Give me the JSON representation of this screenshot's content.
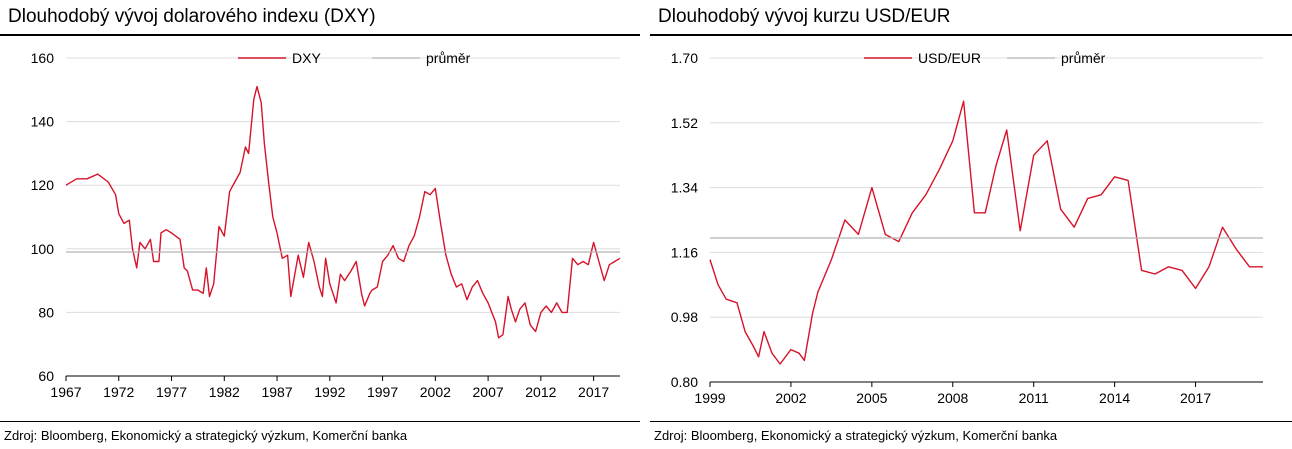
{
  "colors": {
    "series": "#d7132a",
    "average": "#b3b3b3",
    "grid": "#dddddd",
    "axis": "#000000"
  },
  "left": {
    "title": "Dlouhodobý vývoj dolarového indexu (DXY)",
    "source": "Zdroj: Bloomberg, Ekonomický a strategický výzkum, Komerční banka",
    "chart_data": {
      "type": "line",
      "title": "Dlouhodobý vývoj dolarového indexu (DXY)",
      "legend_position": "top-center",
      "grid": true,
      "x_range": [
        1967,
        2019.5
      ],
      "ylim": [
        60,
        160
      ],
      "x_ticks": [
        1967,
        1972,
        1977,
        1982,
        1987,
        1992,
        1997,
        2002,
        2007,
        2012,
        2017
      ],
      "y_ticks": [
        60,
        80,
        100,
        120,
        140,
        160
      ],
      "series": [
        {
          "name": "DXY",
          "role": "series",
          "points": [
            [
              1967,
              120
            ],
            [
              1968,
              122
            ],
            [
              1969,
              122
            ],
            [
              1970,
              123.5
            ],
            [
              1971,
              121
            ],
            [
              1971.7,
              117
            ],
            [
              1972,
              111
            ],
            [
              1972.5,
              108
            ],
            [
              1973,
              109
            ],
            [
              1973.3,
              100
            ],
            [
              1973.7,
              94
            ],
            [
              1974,
              102
            ],
            [
              1974.5,
              100
            ],
            [
              1975,
              103
            ],
            [
              1975.3,
              96
            ],
            [
              1975.8,
              96
            ],
            [
              1976,
              105
            ],
            [
              1976.5,
              106
            ],
            [
              1977,
              105
            ],
            [
              1977.8,
              103
            ],
            [
              1978.2,
              94
            ],
            [
              1978.5,
              93
            ],
            [
              1979,
              87
            ],
            [
              1979.5,
              87
            ],
            [
              1980,
              86
            ],
            [
              1980.3,
              94
            ],
            [
              1980.6,
              85
            ],
            [
              1981,
              89
            ],
            [
              1981.5,
              107
            ],
            [
              1982,
              104
            ],
            [
              1982.5,
              118
            ],
            [
              1983,
              121
            ],
            [
              1983.5,
              124
            ],
            [
              1984,
              132
            ],
            [
              1984.3,
              130
            ],
            [
              1984.8,
              147
            ],
            [
              1985.1,
              151
            ],
            [
              1985.5,
              146
            ],
            [
              1985.8,
              133
            ],
            [
              1986.2,
              121
            ],
            [
              1986.6,
              110
            ],
            [
              1987,
              105
            ],
            [
              1987.5,
              97
            ],
            [
              1988,
              98
            ],
            [
              1988.3,
              85
            ],
            [
              1989,
              98
            ],
            [
              1989.5,
              91
            ],
            [
              1990,
              102
            ],
            [
              1990.5,
              96
            ],
            [
              1991,
              88
            ],
            [
              1991.3,
              85
            ],
            [
              1991.6,
              97
            ],
            [
              1992,
              89
            ],
            [
              1992.6,
              83
            ],
            [
              1993,
              92
            ],
            [
              1993.4,
              90
            ],
            [
              1994,
              93
            ],
            [
              1994.5,
              96
            ],
            [
              1995,
              86
            ],
            [
              1995.3,
              82
            ],
            [
              1995.8,
              86
            ],
            [
              1996,
              87
            ],
            [
              1996.5,
              88
            ],
            [
              1997,
              96
            ],
            [
              1997.5,
              98
            ],
            [
              1998,
              101
            ],
            [
              1998.5,
              97
            ],
            [
              1999,
              96
            ],
            [
              1999.5,
              101
            ],
            [
              2000,
              104
            ],
            [
              2000.5,
              110
            ],
            [
              2001,
              118
            ],
            [
              2001.5,
              117
            ],
            [
              2002,
              119
            ],
            [
              2002.5,
              108
            ],
            [
              2003,
              98
            ],
            [
              2003.5,
              92
            ],
            [
              2004,
              88
            ],
            [
              2004.5,
              89
            ],
            [
              2005,
              84
            ],
            [
              2005.5,
              88
            ],
            [
              2006,
              90
            ],
            [
              2006.5,
              86
            ],
            [
              2007,
              83
            ],
            [
              2007.7,
              77
            ],
            [
              2008,
              72
            ],
            [
              2008.4,
              73
            ],
            [
              2008.9,
              85
            ],
            [
              2009.2,
              81
            ],
            [
              2009.6,
              77
            ],
            [
              2010,
              81
            ],
            [
              2010.5,
              83
            ],
            [
              2011,
              76
            ],
            [
              2011.5,
              74
            ],
            [
              2012,
              80
            ],
            [
              2012.5,
              82
            ],
            [
              2013,
              80
            ],
            [
              2013.5,
              83
            ],
            [
              2014,
              80
            ],
            [
              2014.5,
              80
            ],
            [
              2015,
              97
            ],
            [
              2015.5,
              95
            ],
            [
              2016,
              96
            ],
            [
              2016.5,
              95
            ],
            [
              2017,
              102
            ],
            [
              2017.5,
              96
            ],
            [
              2018,
              90
            ],
            [
              2018.5,
              95
            ],
            [
              2019,
              96
            ],
            [
              2019.5,
              97
            ]
          ]
        },
        {
          "name": "průměr",
          "role": "average",
          "points": [
            [
              1967,
              99
            ],
            [
              2019.5,
              99
            ]
          ]
        }
      ]
    }
  },
  "right": {
    "title": "Dlouhodobý vývoj kurzu USD/EUR",
    "source": "Zdroj: Bloomberg, Ekonomický a strategický výzkum, Komerční banka",
    "chart_data": {
      "type": "line",
      "title": "Dlouhodobý vývoj kurzu USD/EUR",
      "legend_position": "top-center",
      "grid": true,
      "x_range": [
        1999,
        2019.5
      ],
      "ylim": [
        0.8,
        1.7
      ],
      "x_ticks": [
        1999,
        2002,
        2005,
        2008,
        2011,
        2014,
        2017
      ],
      "y_ticks": [
        "0.80",
        "0.98",
        "1.16",
        "1.34",
        "1.52",
        "1.70"
      ],
      "series": [
        {
          "name": "USD/EUR",
          "role": "series",
          "points": [
            [
              1999,
              1.14
            ],
            [
              1999.3,
              1.07
            ],
            [
              1999.6,
              1.03
            ],
            [
              2000,
              1.02
            ],
            [
              2000.3,
              0.94
            ],
            [
              2000.6,
              0.9
            ],
            [
              2000.8,
              0.87
            ],
            [
              2001,
              0.94
            ],
            [
              2001.3,
              0.88
            ],
            [
              2001.6,
              0.85
            ],
            [
              2002,
              0.89
            ],
            [
              2002.3,
              0.88
            ],
            [
              2002.5,
              0.86
            ],
            [
              2002.8,
              0.99
            ],
            [
              2003,
              1.05
            ],
            [
              2003.5,
              1.14
            ],
            [
              2004,
              1.25
            ],
            [
              2004.5,
              1.21
            ],
            [
              2005,
              1.34
            ],
            [
              2005.5,
              1.21
            ],
            [
              2006,
              1.19
            ],
            [
              2006.5,
              1.27
            ],
            [
              2007,
              1.32
            ],
            [
              2007.5,
              1.39
            ],
            [
              2008,
              1.47
            ],
            [
              2008.4,
              1.58
            ],
            [
              2008.8,
              1.27
            ],
            [
              2009.2,
              1.27
            ],
            [
              2009.6,
              1.4
            ],
            [
              2010,
              1.5
            ],
            [
              2010.5,
              1.22
            ],
            [
              2011,
              1.43
            ],
            [
              2011.5,
              1.47
            ],
            [
              2012,
              1.28
            ],
            [
              2012.5,
              1.23
            ],
            [
              2013,
              1.31
            ],
            [
              2013.5,
              1.32
            ],
            [
              2014,
              1.37
            ],
            [
              2014.5,
              1.36
            ],
            [
              2015,
              1.11
            ],
            [
              2015.5,
              1.1
            ],
            [
              2016,
              1.12
            ],
            [
              2016.5,
              1.11
            ],
            [
              2017,
              1.06
            ],
            [
              2017.5,
              1.12
            ],
            [
              2018,
              1.23
            ],
            [
              2018.5,
              1.17
            ],
            [
              2019,
              1.12
            ],
            [
              2019.5,
              1.12
            ]
          ]
        },
        {
          "name": "průměr",
          "role": "average",
          "points": [
            [
              1999,
              1.2
            ],
            [
              2019.5,
              1.2
            ]
          ]
        }
      ]
    }
  }
}
